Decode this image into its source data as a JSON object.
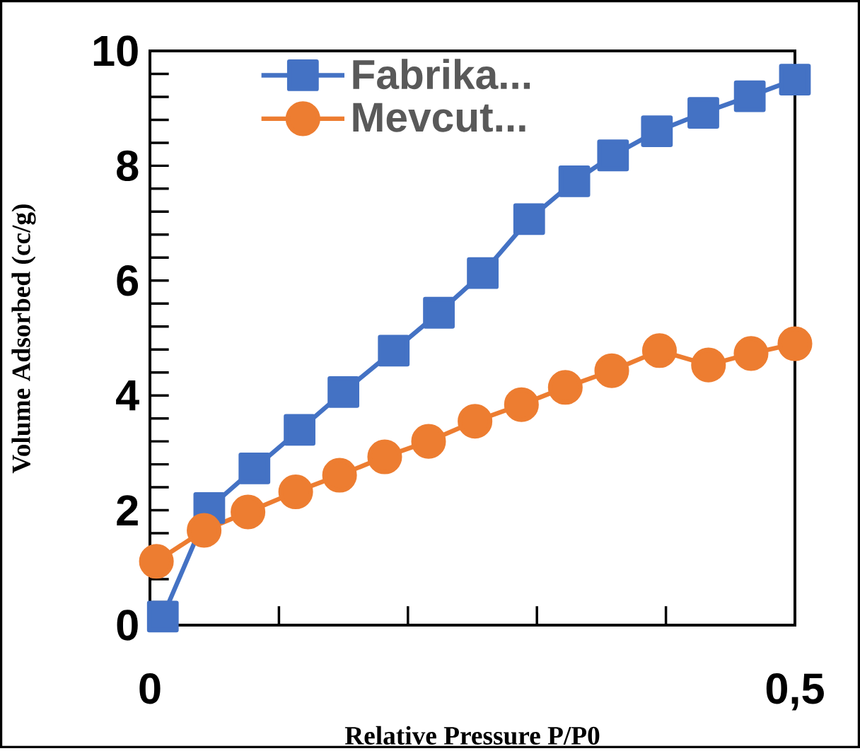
{
  "chart_data": {
    "type": "line",
    "xlabel": "Relative Pressure P/P0",
    "ylabel": "Volume Adsorbed (cc/g)",
    "xlim": [
      0,
      0.5
    ],
    "ylim": [
      0,
      10
    ],
    "xticks": [
      {
        "value": 0,
        "label": "0"
      },
      {
        "value": 0.1,
        "label": null
      },
      {
        "value": 0.2,
        "label": null
      },
      {
        "value": 0.3,
        "label": null
      },
      {
        "value": 0.4,
        "label": null
      },
      {
        "value": 0.5,
        "label": "0,5"
      }
    ],
    "yticks": [
      0,
      {
        "value": 0.4,
        "label": null
      },
      {
        "value": 0.8,
        "label": null
      },
      {
        "value": 1.2,
        "label": null
      },
      {
        "value": 1.6,
        "label": null
      },
      2,
      {
        "value": 2.4,
        "label": null
      },
      {
        "value": 2.8,
        "label": null
      },
      {
        "value": 3.2,
        "label": null
      },
      {
        "value": 3.6,
        "label": null
      },
      4,
      {
        "value": 4.4,
        "label": null
      },
      {
        "value": 4.8,
        "label": null
      },
      {
        "value": 5.2,
        "label": null
      },
      {
        "value": 5.6,
        "label": null
      },
      6,
      {
        "value": 6.4,
        "label": null
      },
      {
        "value": 6.8,
        "label": null
      },
      {
        "value": 7.2,
        "label": null
      },
      {
        "value": 7.6,
        "label": null
      },
      8,
      {
        "value": 8.4,
        "label": null
      },
      {
        "value": 8.8,
        "label": null
      },
      {
        "value": 9.2,
        "label": null
      },
      {
        "value": 9.6,
        "label": null
      },
      10
    ],
    "legend": "top left",
    "grid": false,
    "series": [
      {
        "name": "Fabrika...",
        "color": "#4472c4",
        "marker": "square",
        "x": [
          0.01,
          0.046,
          0.081,
          0.116,
          0.15,
          0.189,
          0.224,
          0.258,
          0.294,
          0.329,
          0.359,
          0.393,
          0.429,
          0.465,
          0.5
        ],
        "values": [
          0.15,
          2.04,
          2.73,
          3.4,
          4.06,
          4.78,
          5.44,
          6.13,
          7.07,
          7.73,
          8.18,
          8.6,
          8.92,
          9.21,
          9.5
        ]
      },
      {
        "name": "Mevcut...",
        "color": "#ed7d31",
        "marker": "circle",
        "x": [
          0.005,
          0.042,
          0.076,
          0.113,
          0.147,
          0.182,
          0.216,
          0.252,
          0.288,
          0.322,
          0.358,
          0.395,
          0.433,
          0.466,
          0.5
        ],
        "values": [
          1.11,
          1.65,
          1.97,
          2.32,
          2.61,
          2.93,
          3.2,
          3.55,
          3.84,
          4.14,
          4.43,
          4.78,
          4.53,
          4.73,
          4.9
        ]
      }
    ]
  }
}
